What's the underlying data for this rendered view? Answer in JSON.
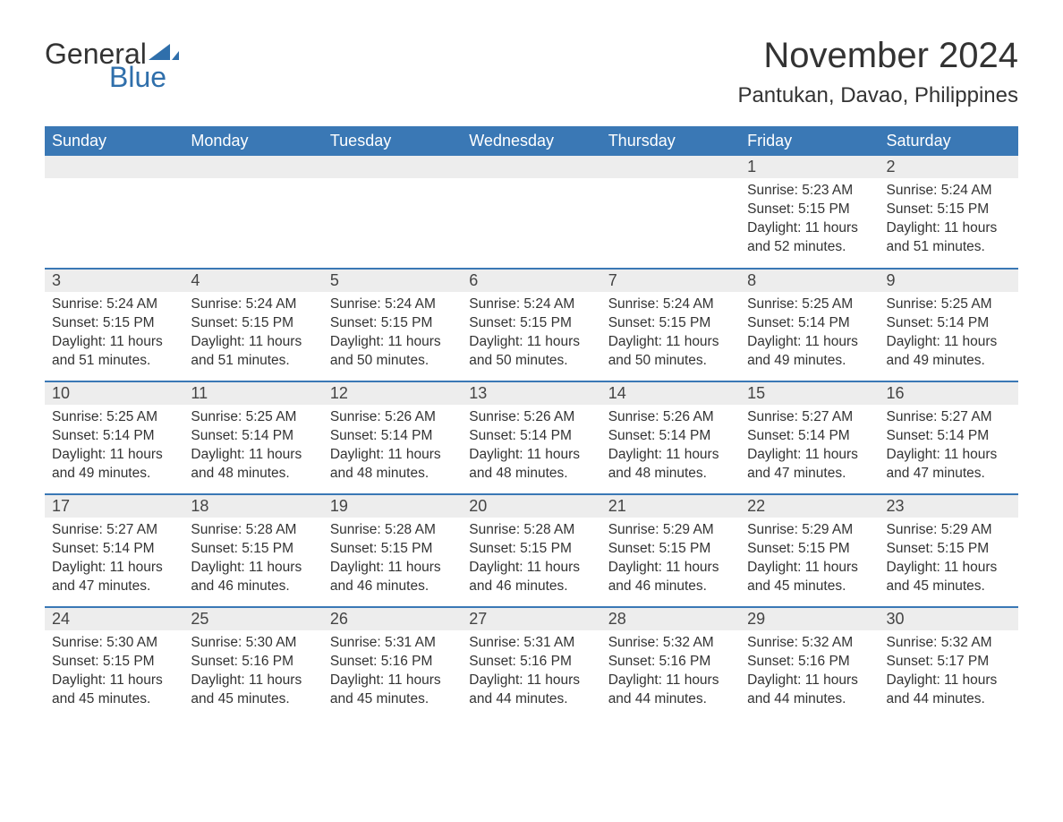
{
  "logo": {
    "text1": "General",
    "text2": "Blue",
    "icon_color": "#2f6fab"
  },
  "title": "November 2024",
  "location": "Pantukan, Davao, Philippines",
  "colors": {
    "header_bg": "#3a78b5",
    "header_text": "#ffffff",
    "daynum_bg": "#ededed",
    "row_divider": "#3a78b5",
    "text": "#333333",
    "logo_blue": "#2f6fab"
  },
  "dayHeaders": [
    "Sunday",
    "Monday",
    "Tuesday",
    "Wednesday",
    "Thursday",
    "Friday",
    "Saturday"
  ],
  "weeks": [
    [
      null,
      null,
      null,
      null,
      null,
      {
        "n": "1",
        "sunrise": "Sunrise: 5:23 AM",
        "sunset": "Sunset: 5:15 PM",
        "daylight": "Daylight: 11 hours and 52 minutes."
      },
      {
        "n": "2",
        "sunrise": "Sunrise: 5:24 AM",
        "sunset": "Sunset: 5:15 PM",
        "daylight": "Daylight: 11 hours and 51 minutes."
      }
    ],
    [
      {
        "n": "3",
        "sunrise": "Sunrise: 5:24 AM",
        "sunset": "Sunset: 5:15 PM",
        "daylight": "Daylight: 11 hours and 51 minutes."
      },
      {
        "n": "4",
        "sunrise": "Sunrise: 5:24 AM",
        "sunset": "Sunset: 5:15 PM",
        "daylight": "Daylight: 11 hours and 51 minutes."
      },
      {
        "n": "5",
        "sunrise": "Sunrise: 5:24 AM",
        "sunset": "Sunset: 5:15 PM",
        "daylight": "Daylight: 11 hours and 50 minutes."
      },
      {
        "n": "6",
        "sunrise": "Sunrise: 5:24 AM",
        "sunset": "Sunset: 5:15 PM",
        "daylight": "Daylight: 11 hours and 50 minutes."
      },
      {
        "n": "7",
        "sunrise": "Sunrise: 5:24 AM",
        "sunset": "Sunset: 5:15 PM",
        "daylight": "Daylight: 11 hours and 50 minutes."
      },
      {
        "n": "8",
        "sunrise": "Sunrise: 5:25 AM",
        "sunset": "Sunset: 5:14 PM",
        "daylight": "Daylight: 11 hours and 49 minutes."
      },
      {
        "n": "9",
        "sunrise": "Sunrise: 5:25 AM",
        "sunset": "Sunset: 5:14 PM",
        "daylight": "Daylight: 11 hours and 49 minutes."
      }
    ],
    [
      {
        "n": "10",
        "sunrise": "Sunrise: 5:25 AM",
        "sunset": "Sunset: 5:14 PM",
        "daylight": "Daylight: 11 hours and 49 minutes."
      },
      {
        "n": "11",
        "sunrise": "Sunrise: 5:25 AM",
        "sunset": "Sunset: 5:14 PM",
        "daylight": "Daylight: 11 hours and 48 minutes."
      },
      {
        "n": "12",
        "sunrise": "Sunrise: 5:26 AM",
        "sunset": "Sunset: 5:14 PM",
        "daylight": "Daylight: 11 hours and 48 minutes."
      },
      {
        "n": "13",
        "sunrise": "Sunrise: 5:26 AM",
        "sunset": "Sunset: 5:14 PM",
        "daylight": "Daylight: 11 hours and 48 minutes."
      },
      {
        "n": "14",
        "sunrise": "Sunrise: 5:26 AM",
        "sunset": "Sunset: 5:14 PM",
        "daylight": "Daylight: 11 hours and 48 minutes."
      },
      {
        "n": "15",
        "sunrise": "Sunrise: 5:27 AM",
        "sunset": "Sunset: 5:14 PM",
        "daylight": "Daylight: 11 hours and 47 minutes."
      },
      {
        "n": "16",
        "sunrise": "Sunrise: 5:27 AM",
        "sunset": "Sunset: 5:14 PM",
        "daylight": "Daylight: 11 hours and 47 minutes."
      }
    ],
    [
      {
        "n": "17",
        "sunrise": "Sunrise: 5:27 AM",
        "sunset": "Sunset: 5:14 PM",
        "daylight": "Daylight: 11 hours and 47 minutes."
      },
      {
        "n": "18",
        "sunrise": "Sunrise: 5:28 AM",
        "sunset": "Sunset: 5:15 PM",
        "daylight": "Daylight: 11 hours and 46 minutes."
      },
      {
        "n": "19",
        "sunrise": "Sunrise: 5:28 AM",
        "sunset": "Sunset: 5:15 PM",
        "daylight": "Daylight: 11 hours and 46 minutes."
      },
      {
        "n": "20",
        "sunrise": "Sunrise: 5:28 AM",
        "sunset": "Sunset: 5:15 PM",
        "daylight": "Daylight: 11 hours and 46 minutes."
      },
      {
        "n": "21",
        "sunrise": "Sunrise: 5:29 AM",
        "sunset": "Sunset: 5:15 PM",
        "daylight": "Daylight: 11 hours and 46 minutes."
      },
      {
        "n": "22",
        "sunrise": "Sunrise: 5:29 AM",
        "sunset": "Sunset: 5:15 PM",
        "daylight": "Daylight: 11 hours and 45 minutes."
      },
      {
        "n": "23",
        "sunrise": "Sunrise: 5:29 AM",
        "sunset": "Sunset: 5:15 PM",
        "daylight": "Daylight: 11 hours and 45 minutes."
      }
    ],
    [
      {
        "n": "24",
        "sunrise": "Sunrise: 5:30 AM",
        "sunset": "Sunset: 5:15 PM",
        "daylight": "Daylight: 11 hours and 45 minutes."
      },
      {
        "n": "25",
        "sunrise": "Sunrise: 5:30 AM",
        "sunset": "Sunset: 5:16 PM",
        "daylight": "Daylight: 11 hours and 45 minutes."
      },
      {
        "n": "26",
        "sunrise": "Sunrise: 5:31 AM",
        "sunset": "Sunset: 5:16 PM",
        "daylight": "Daylight: 11 hours and 45 minutes."
      },
      {
        "n": "27",
        "sunrise": "Sunrise: 5:31 AM",
        "sunset": "Sunset: 5:16 PM",
        "daylight": "Daylight: 11 hours and 44 minutes."
      },
      {
        "n": "28",
        "sunrise": "Sunrise: 5:32 AM",
        "sunset": "Sunset: 5:16 PM",
        "daylight": "Daylight: 11 hours and 44 minutes."
      },
      {
        "n": "29",
        "sunrise": "Sunrise: 5:32 AM",
        "sunset": "Sunset: 5:16 PM",
        "daylight": "Daylight: 11 hours and 44 minutes."
      },
      {
        "n": "30",
        "sunrise": "Sunrise: 5:32 AM",
        "sunset": "Sunset: 5:17 PM",
        "daylight": "Daylight: 11 hours and 44 minutes."
      }
    ]
  ]
}
